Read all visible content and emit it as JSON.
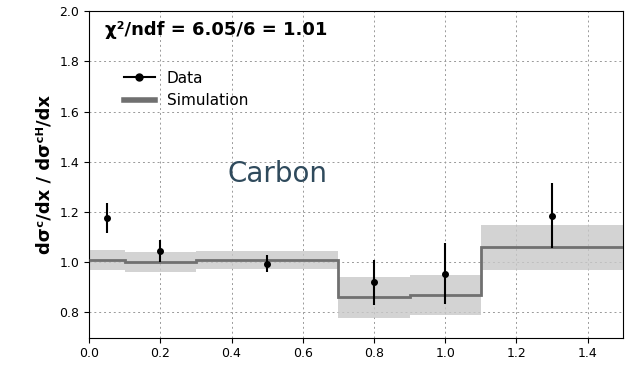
{
  "chart_data": {
    "type": "scatter",
    "y_label": "dσᶜ/dx / dσᶜᴴ/dx",
    "annotations": [
      "χ²/ndf = 6.05/6 = 1.01",
      "Carbon"
    ],
    "xlim": [
      0,
      1.5
    ],
    "xticks": [
      {
        "value": 0,
        "label": "0.0"
      },
      {
        "value": 0.2,
        "label": "0.2"
      },
      {
        "value": 0.4,
        "label": "0.4"
      },
      {
        "value": 0.6,
        "label": "0.6"
      },
      {
        "value": 0.8,
        "label": "0.8"
      },
      {
        "value": 1,
        "label": "1.0"
      },
      {
        "value": 1.2,
        "label": "1.2"
      },
      {
        "value": 1.4,
        "label": "1.4"
      }
    ],
    "ylim": [
      0.7,
      2.0
    ],
    "yticks": [
      {
        "value": 0.8,
        "label": "0.8"
      },
      {
        "value": 1,
        "label": "1.0"
      },
      {
        "value": 1.2,
        "label": "1.2"
      },
      {
        "value": 1.4,
        "label": "1.4"
      },
      {
        "value": 1.6,
        "label": "1.6"
      },
      {
        "value": 1.8,
        "label": "1.8"
      },
      {
        "value": 2,
        "label": "2.0"
      }
    ],
    "grid": true,
    "legend": "upper left",
    "series": [
      {
        "name": "Data",
        "type": "scatter",
        "color": "#000000",
        "marker": "circle",
        "x": [
          0.05,
          0.2,
          0.5,
          0.8,
          1.0,
          1.3
        ],
        "values": [
          1.175,
          1.045,
          0.995,
          0.92,
          0.955,
          1.185
        ],
        "errors": [
          0.06,
          0.045,
          0.035,
          0.09,
          0.12,
          0.13
        ]
      },
      {
        "name": "Simulation",
        "type": "step",
        "color": "#707070",
        "bins": [
          0,
          0.1,
          0.3,
          0.7,
          0.9,
          1.1,
          1.5
        ],
        "values": [
          1.01,
          1.0,
          1.01,
          0.86,
          0.87,
          1.06
        ],
        "errors": [
          0.04,
          0.04,
          0.035,
          0.08,
          0.08,
          0.09
        ]
      }
    ]
  }
}
